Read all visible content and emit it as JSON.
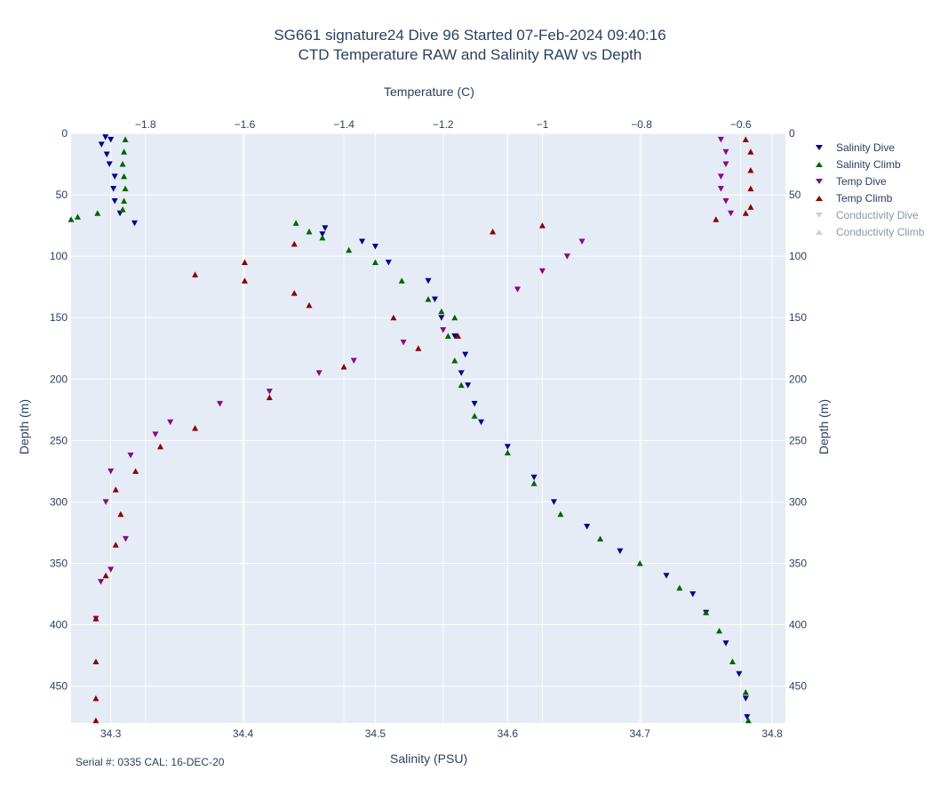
{
  "title": {
    "line1": "SG661 signature24 Dive 96 Started 07-Feb-2024 09:40:16",
    "line2": "CTD Temperature RAW and Salinity RAW vs Depth"
  },
  "footer": "Serial #: 0335  CAL: 16-DEC-20",
  "colors": {
    "plot_bg": "#e5ecf6",
    "grid": "#ffffff",
    "salinity_dive": "#00008b",
    "salinity_climb": "#006400",
    "temp_dive": "#8b008b",
    "temp_climb": "#8b0000",
    "conductivity_dive": "#a9a9a9",
    "conductivity_climb": "#a9a9a9"
  },
  "chart_data": {
    "type": "scatter",
    "x_bottom": {
      "label": "Salinity (PSU)",
      "range": [
        34.27,
        34.81
      ],
      "ticks": [
        34.3,
        34.4,
        34.5,
        34.6,
        34.7,
        34.8
      ],
      "tick_labels": [
        "34.3",
        "34.4",
        "34.5",
        "34.6",
        "34.7",
        "34.8"
      ]
    },
    "x_top": {
      "label": "Temperature (C)",
      "range": [
        -1.95,
        -0.51
      ],
      "ticks": [
        -1.8,
        -1.6,
        -1.4,
        -1.2,
        -1.0,
        -0.8,
        -0.6
      ],
      "tick_labels": [
        "−1.8",
        "−1.6",
        "−1.4",
        "−1.2",
        "−1",
        "−0.8",
        "−0.6"
      ]
    },
    "y": {
      "label": "Depth (m)",
      "range": [
        480,
        0
      ],
      "reversed": true,
      "ticks": [
        0,
        50,
        100,
        150,
        200,
        250,
        300,
        350,
        400,
        450
      ],
      "tick_labels": [
        "0",
        "50",
        "100",
        "150",
        "200",
        "250",
        "300",
        "350",
        "400",
        "450"
      ]
    },
    "grid": true,
    "legend_position": "right",
    "series": [
      {
        "name": "Salinity Dive",
        "axis": "salinity",
        "marker": "triangle-down",
        "color": "#00008b",
        "points": [
          [
            34.296,
            3
          ],
          [
            34.3,
            5
          ],
          [
            34.293,
            9
          ],
          [
            34.297,
            17
          ],
          [
            34.299,
            25
          ],
          [
            34.303,
            35
          ],
          [
            34.302,
            45
          ],
          [
            34.303,
            55
          ],
          [
            34.307,
            65
          ],
          [
            34.318,
            73
          ],
          [
            34.462,
            77
          ],
          [
            34.46,
            82
          ],
          [
            34.49,
            88
          ],
          [
            34.5,
            92
          ],
          [
            34.51,
            105
          ],
          [
            34.54,
            120
          ],
          [
            34.545,
            135
          ],
          [
            34.55,
            150
          ],
          [
            34.56,
            165
          ],
          [
            34.568,
            180
          ],
          [
            34.565,
            195
          ],
          [
            34.57,
            205
          ],
          [
            34.575,
            220
          ],
          [
            34.58,
            235
          ],
          [
            34.6,
            255
          ],
          [
            34.62,
            280
          ],
          [
            34.635,
            300
          ],
          [
            34.66,
            320
          ],
          [
            34.685,
            340
          ],
          [
            34.72,
            360
          ],
          [
            34.74,
            375
          ],
          [
            34.75,
            390
          ],
          [
            34.765,
            415
          ],
          [
            34.775,
            440
          ],
          [
            34.78,
            460
          ],
          [
            34.781,
            475
          ]
        ]
      },
      {
        "name": "Salinity Climb",
        "axis": "salinity",
        "marker": "triangle-up",
        "color": "#006400",
        "points": [
          [
            34.311,
            5
          ],
          [
            34.31,
            15
          ],
          [
            34.309,
            25
          ],
          [
            34.31,
            35
          ],
          [
            34.311,
            45
          ],
          [
            34.31,
            55
          ],
          [
            34.309,
            62
          ],
          [
            34.29,
            65
          ],
          [
            34.275,
            68
          ],
          [
            34.27,
            70
          ],
          [
            34.44,
            73
          ],
          [
            34.45,
            80
          ],
          [
            34.46,
            85
          ],
          [
            34.48,
            95
          ],
          [
            34.5,
            105
          ],
          [
            34.52,
            120
          ],
          [
            34.54,
            135
          ],
          [
            34.55,
            145
          ],
          [
            34.56,
            150
          ],
          [
            34.555,
            165
          ],
          [
            34.56,
            185
          ],
          [
            34.565,
            205
          ],
          [
            34.575,
            230
          ],
          [
            34.6,
            260
          ],
          [
            34.62,
            285
          ],
          [
            34.64,
            310
          ],
          [
            34.67,
            330
          ],
          [
            34.7,
            350
          ],
          [
            34.73,
            370
          ],
          [
            34.75,
            390
          ],
          [
            34.76,
            405
          ],
          [
            34.77,
            430
          ],
          [
            34.78,
            455
          ],
          [
            34.782,
            478
          ]
        ]
      },
      {
        "name": "Temp Dive",
        "axis": "temperature",
        "marker": "triangle-down",
        "color": "#8b008b",
        "points": [
          [
            -0.64,
            5
          ],
          [
            -0.63,
            15
          ],
          [
            -0.63,
            25
          ],
          [
            -0.64,
            35
          ],
          [
            -0.64,
            45
          ],
          [
            -0.63,
            55
          ],
          [
            -0.62,
            65
          ],
          [
            -0.92,
            88
          ],
          [
            -0.95,
            100
          ],
          [
            -1.0,
            112
          ],
          [
            -1.05,
            127
          ],
          [
            -1.2,
            160
          ],
          [
            -1.28,
            170
          ],
          [
            -1.38,
            185
          ],
          [
            -1.45,
            195
          ],
          [
            -1.55,
            210
          ],
          [
            -1.65,
            220
          ],
          [
            -1.75,
            235
          ],
          [
            -1.78,
            245
          ],
          [
            -1.83,
            262
          ],
          [
            -1.87,
            275
          ],
          [
            -1.88,
            300
          ],
          [
            -1.84,
            330
          ],
          [
            -1.87,
            355
          ],
          [
            -1.89,
            365
          ],
          [
            -1.9,
            395
          ]
        ]
      },
      {
        "name": "Temp Climb",
        "axis": "temperature",
        "marker": "triangle-up",
        "color": "#8b0000",
        "points": [
          [
            -0.59,
            5
          ],
          [
            -0.58,
            15
          ],
          [
            -0.58,
            30
          ],
          [
            -0.58,
            45
          ],
          [
            -0.58,
            60
          ],
          [
            -0.59,
            65
          ],
          [
            -0.65,
            70
          ],
          [
            -1.0,
            75
          ],
          [
            -1.1,
            80
          ],
          [
            -1.5,
            90
          ],
          [
            -1.6,
            105
          ],
          [
            -1.7,
            115
          ],
          [
            -1.6,
            120
          ],
          [
            -1.5,
            130
          ],
          [
            -1.47,
            140
          ],
          [
            -1.3,
            150
          ],
          [
            -1.17,
            165
          ],
          [
            -1.25,
            175
          ],
          [
            -1.4,
            190
          ],
          [
            -1.55,
            215
          ],
          [
            -1.7,
            240
          ],
          [
            -1.77,
            255
          ],
          [
            -1.82,
            275
          ],
          [
            -1.86,
            290
          ],
          [
            -1.85,
            310
          ],
          [
            -1.86,
            335
          ],
          [
            -1.88,
            360
          ],
          [
            -1.9,
            395
          ],
          [
            -1.9,
            430
          ],
          [
            -1.9,
            460
          ],
          [
            -1.9,
            478
          ]
        ]
      },
      {
        "name": "Conductivity Dive",
        "axis": "none",
        "marker": "triangle-down",
        "color": "#a9a9a9",
        "visible": "legendonly",
        "points": []
      },
      {
        "name": "Conductivity Climb",
        "axis": "none",
        "marker": "triangle-up",
        "color": "#a9a9a9",
        "visible": "legendonly",
        "points": []
      }
    ]
  }
}
